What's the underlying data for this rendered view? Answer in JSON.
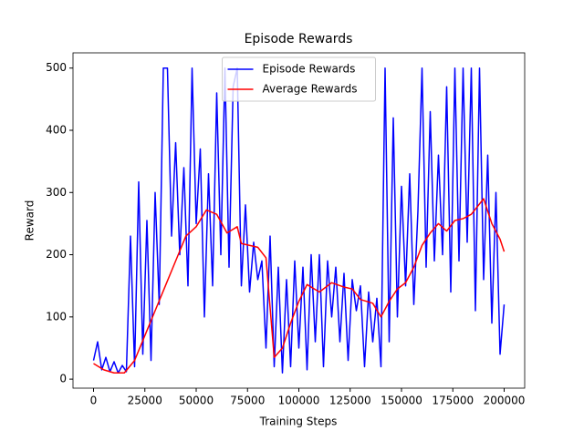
{
  "chart_data": {
    "type": "line",
    "title": "Episode Rewards",
    "x_label": "Training Steps",
    "y_label": "Reward",
    "xlim": [
      -10000,
      210000
    ],
    "xticks": [
      0,
      25000,
      50000,
      75000,
      100000,
      125000,
      150000,
      175000,
      200000
    ],
    "ylim": [
      -14.5,
      524.5
    ],
    "yticks": [
      0,
      100,
      200,
      300,
      400,
      500
    ],
    "grid": false,
    "legend": "upper center",
    "series": [
      {
        "name": "Episode Rewards",
        "color": "#0000ff",
        "x": [
          0,
          2000,
          4000,
          6000,
          8000,
          10000,
          12000,
          14000,
          16000,
          18000,
          20000,
          22000,
          24000,
          26000,
          28000,
          30000,
          32000,
          34000,
          36000,
          38000,
          40000,
          42000,
          44000,
          46000,
          48000,
          50000,
          52000,
          54000,
          56000,
          58000,
          60000,
          62000,
          64000,
          66000,
          68000,
          70000,
          72000,
          74000,
          76000,
          78000,
          80000,
          82000,
          84000,
          86000,
          88000,
          90000,
          92000,
          94000,
          96000,
          98000,
          100000,
          102000,
          104000,
          106000,
          108000,
          110000,
          112000,
          114000,
          116000,
          118000,
          120000,
          122000,
          124000,
          126000,
          128000,
          130000,
          132000,
          134000,
          136000,
          138000,
          140000,
          142000,
          144000,
          146000,
          148000,
          150000,
          152000,
          154000,
          156000,
          158000,
          160000,
          162000,
          164000,
          166000,
          168000,
          170000,
          172000,
          174000,
          176000,
          178000,
          180000,
          182000,
          184000,
          186000,
          188000,
          190000,
          192000,
          194000,
          196000,
          198000,
          200000
        ],
        "values": [
          30,
          60,
          15,
          35,
          12,
          28,
          10,
          22,
          12,
          230,
          20,
          317,
          40,
          255,
          30,
          300,
          120,
          500,
          500,
          230,
          380,
          200,
          340,
          150,
          500,
          250,
          370,
          100,
          330,
          150,
          460,
          200,
          500,
          180,
          470,
          500,
          150,
          280,
          140,
          220,
          160,
          190,
          50,
          230,
          20,
          180,
          10,
          160,
          20,
          190,
          50,
          180,
          15,
          200,
          60,
          200,
          20,
          190,
          100,
          180,
          60,
          170,
          30,
          160,
          110,
          150,
          20,
          140,
          60,
          130,
          20,
          500,
          60,
          420,
          100,
          310,
          150,
          330,
          120,
          270,
          500,
          180,
          430,
          190,
          360,
          200,
          470,
          140,
          500,
          190,
          500,
          220,
          500,
          110,
          500,
          160,
          360,
          90,
          300,
          40,
          120
        ]
      },
      {
        "name": "Average Rewards",
        "color": "#ff0000",
        "x": [
          0,
          5000,
          10000,
          15000,
          20000,
          25000,
          30000,
          35000,
          40000,
          45000,
          50000,
          55000,
          60000,
          65000,
          70000,
          72000,
          80000,
          84000,
          88000,
          92000,
          96000,
          100000,
          104000,
          110000,
          116000,
          122000,
          126000,
          130000,
          136000,
          140000,
          144000,
          148000,
          152000,
          156000,
          160000,
          164000,
          168000,
          172000,
          176000,
          180000,
          184000,
          190000,
          194000,
          198000,
          200000
        ],
        "values": [
          25,
          15,
          10,
          10,
          30,
          70,
          110,
          150,
          190,
          230,
          245,
          272,
          265,
          235,
          245,
          218,
          212,
          195,
          35,
          50,
          90,
          125,
          152,
          140,
          155,
          148,
          145,
          128,
          122,
          100,
          125,
          145,
          155,
          180,
          215,
          235,
          250,
          238,
          255,
          258,
          265,
          290,
          250,
          225,
          205
        ]
      }
    ]
  }
}
